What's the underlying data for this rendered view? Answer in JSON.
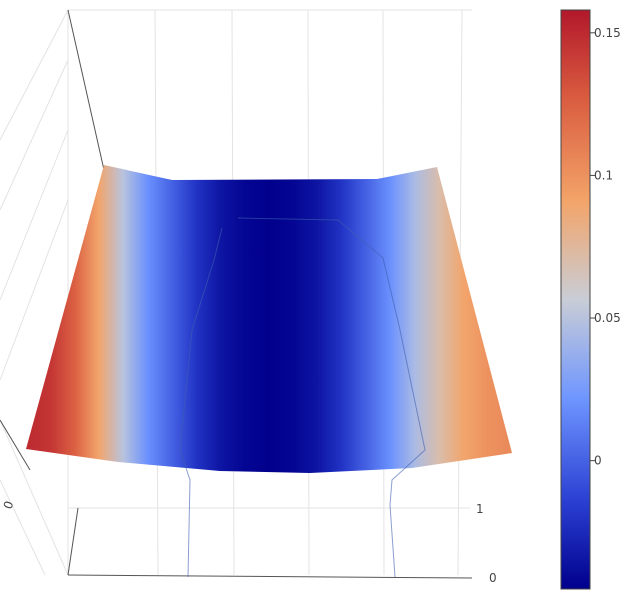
{
  "chart_data": {
    "type": "surface",
    "colorscale": "RdBu_reversed_coolwarm",
    "colorbar": {
      "min": -0.045,
      "max": 0.158,
      "ticks": [
        {
          "value": 0.15,
          "label": "0.15"
        },
        {
          "value": 0.1,
          "label": "0.1"
        },
        {
          "value": 0.05,
          "label": "0.05"
        },
        {
          "value": 0,
          "label": "0"
        }
      ]
    },
    "axis_ticks": {
      "y": [
        {
          "value": 1,
          "label": "1"
        },
        {
          "value": 0,
          "label": "0"
        }
      ],
      "x": [
        {
          "value": 0,
          "label": "0"
        }
      ]
    },
    "surface_profile": {
      "x": [
        0,
        0.05,
        0.1,
        0.15,
        0.2,
        0.25,
        0.3,
        0.35,
        0.4,
        0.45,
        0.5,
        0.55,
        0.6,
        0.65,
        0.7,
        0.75,
        0.8,
        0.85,
        0.9,
        0.95,
        1
      ],
      "z": [
        0.15,
        0.145,
        0.125,
        0.09,
        0.05,
        0.02,
        0.0,
        -0.02,
        -0.035,
        -0.042,
        -0.045,
        -0.042,
        -0.035,
        -0.02,
        0.0,
        0.02,
        0.045,
        0.07,
        0.09,
        0.1,
        0.105
      ]
    },
    "grid": true
  }
}
